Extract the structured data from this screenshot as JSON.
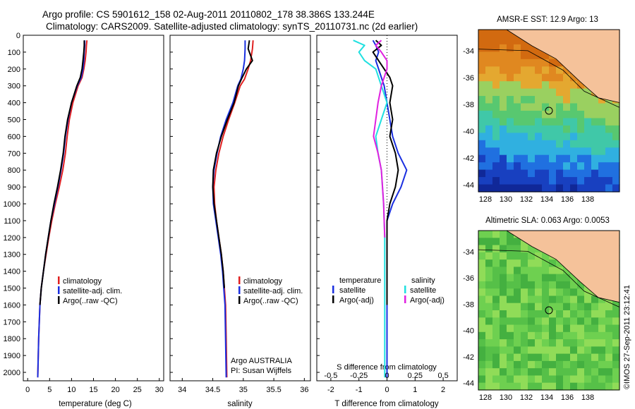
{
  "header": {
    "line1": "Argo profile: CS 5901612_158 02-Aug-2011 20110802_178 38.386S 133.244E",
    "line2": "Climatology: CARS2009. Satellite-adjusted climatology: synTS_20110731.nc (2d earlier)"
  },
  "panel_labels": {
    "temp_xlabel": "temperature (deg C)",
    "sal_xlabel": "salinity",
    "diff_xlabel_bottom": "T difference from climatology",
    "diff_xlabel_top": "S difference from climatology",
    "argo_credit": "Argo AUSTRALIA",
    "pi_credit": "PI: Susan Wijffels",
    "legend_temp_head": "temperature",
    "legend_sal_head": "salinity"
  },
  "legends": {
    "profile": [
      "climatology",
      "satellite-adj. clim.",
      "Argo(..raw -QC)"
    ],
    "diff_temp": [
      "satellite",
      "Argo(-adj)"
    ],
    "diff_sal": [
      "satellite",
      "Argo(-adj)"
    ]
  },
  "maps": {
    "sst_title": "AMSR-E SST: 12.9 Argo: 13",
    "sla_title": "Altimetric SLA: 0.063 Argo: 0.0053",
    "lat_ticks": [
      "-34",
      "-36",
      "-38",
      "-40",
      "-42",
      "-44"
    ],
    "lon_ticks": [
      "128",
      "130",
      "132",
      "134",
      "136",
      "138"
    ]
  },
  "watermark": "©IMOS 27-Sep-2011 23:12:41",
  "colors": {
    "climatology": "#e02020",
    "satellite": "#1a2fe0",
    "argo": "#000000",
    "sal_satellite": "#20e0e0",
    "sal_argo": "#e020e0",
    "land": "#f5c29a"
  },
  "chart_data": [
    {
      "type": "line",
      "title": "",
      "xlabel": "temperature (deg C)",
      "ylabel": "",
      "xlim": [
        -1,
        31
      ],
      "ylim": [
        2050,
        0
      ],
      "xticks": [
        0,
        5,
        10,
        15,
        20,
        25,
        30
      ],
      "yticks": [
        0,
        100,
        200,
        300,
        400,
        500,
        600,
        700,
        800,
        900,
        1000,
        1100,
        1200,
        1300,
        1400,
        1500,
        1600,
        1700,
        1800,
        1900,
        2000
      ],
      "series": [
        {
          "name": "climatology",
          "x": [
            13.5,
            13.4,
            13.3,
            13.1,
            12.8,
            12.4,
            11.5,
            10.3,
            9.5,
            9.0,
            8.6,
            8.0,
            7.2,
            6.3,
            5.5,
            4.8,
            4.2,
            3.6,
            3.1,
            2.8,
            2.5,
            2.3
          ],
          "y": [
            30,
            60,
            100,
            150,
            200,
            250,
            300,
            400,
            500,
            600,
            700,
            800,
            900,
            1000,
            1100,
            1200,
            1300,
            1400,
            1500,
            1600,
            1800,
            2030
          ]
        },
        {
          "name": "satellite-adj. clim.",
          "x": [
            13.0,
            13.0,
            12.9,
            12.8,
            12.6,
            12.2,
            11.3,
            10.0,
            9.2,
            8.6,
            8.2,
            7.6,
            6.9,
            6.1,
            5.3,
            4.7,
            4.1,
            3.6,
            3.1,
            2.8,
            2.5,
            2.3
          ],
          "y": [
            30,
            60,
            100,
            150,
            200,
            250,
            300,
            400,
            500,
            600,
            700,
            800,
            900,
            1000,
            1100,
            1200,
            1300,
            1400,
            1500,
            1600,
            1800,
            2030
          ]
        },
        {
          "name": "Argo(..raw -QC)",
          "x": [
            12.9,
            12.9,
            12.8,
            12.6,
            12.4,
            12.0,
            11.2,
            10.0,
            9.1,
            8.5,
            8.1,
            7.5,
            6.8,
            6.0,
            5.3,
            4.7,
            4.1,
            3.6,
            3.1,
            2.8
          ],
          "y": [
            30,
            60,
            100,
            150,
            200,
            250,
            300,
            400,
            500,
            600,
            700,
            800,
            900,
            1000,
            1100,
            1200,
            1300,
            1400,
            1500,
            1600
          ]
        }
      ]
    },
    {
      "type": "line",
      "title": "",
      "xlabel": "salinity",
      "ylabel": "",
      "xlim": [
        33.8,
        36.1
      ],
      "ylim": [
        2050,
        0
      ],
      "xticks": [
        34,
        34.5,
        35,
        35.5,
        36
      ],
      "series": [
        {
          "name": "climatology",
          "x": [
            35.16,
            35.15,
            35.12,
            35.08,
            35.02,
            34.95,
            34.86,
            34.76,
            34.67,
            34.6,
            34.55,
            34.52,
            34.53,
            34.56,
            34.6,
            34.64,
            34.67,
            34.69,
            34.71,
            34.72,
            34.73
          ],
          "y": [
            30,
            80,
            150,
            200,
            260,
            300,
            400,
            500,
            600,
            700,
            800,
            900,
            1000,
            1100,
            1200,
            1300,
            1400,
            1500,
            1600,
            1800,
            2030
          ]
        },
        {
          "name": "satellite-adj. clim.",
          "x": [
            35.03,
            35.03,
            35.02,
            35.0,
            34.96,
            34.91,
            34.83,
            34.72,
            34.63,
            34.57,
            34.52,
            34.5,
            34.51,
            34.55,
            34.59,
            34.63,
            34.66,
            34.68,
            34.7,
            34.71,
            34.72
          ],
          "y": [
            30,
            80,
            150,
            200,
            260,
            300,
            400,
            500,
            600,
            700,
            800,
            900,
            1000,
            1100,
            1200,
            1300,
            1400,
            1500,
            1600,
            1800,
            2030
          ]
        },
        {
          "name": "Argo(..raw -QC)",
          "x": [
            35.1,
            35.08,
            35.15,
            35.05,
            34.97,
            34.92,
            34.85,
            34.74,
            34.64,
            34.56,
            34.51,
            34.5,
            34.52,
            34.56,
            34.6,
            34.64,
            34.67,
            34.69
          ],
          "y": [
            30,
            80,
            150,
            200,
            260,
            300,
            400,
            500,
            600,
            700,
            800,
            900,
            1000,
            1100,
            1200,
            1300,
            1400,
            1500
          ]
        }
      ]
    },
    {
      "type": "line",
      "title": "",
      "xlabel": "T difference from climatology",
      "ylabel": "",
      "xlim": [
        -2.5,
        2.5
      ],
      "ylim": [
        2050,
        0
      ],
      "xticks": [
        -2,
        -1,
        0,
        1,
        2
      ],
      "x2label": "S difference from climatology",
      "x2ticks": [
        -0.5,
        -0.25,
        0,
        0.25,
        0.5
      ],
      "series": [
        {
          "name": "temperature satellite",
          "x": [
            -0.5,
            -0.4,
            -0.3,
            -0.4,
            -0.3,
            -0.2,
            -0.1,
            0.0,
            0.1,
            0.2,
            0.4,
            0.7,
            0.5,
            0.2,
            0.0,
            0.0,
            0.0,
            0.0,
            0.0,
            0.0
          ],
          "y": [
            30,
            60,
            100,
            150,
            200,
            250,
            300,
            400,
            500,
            600,
            700,
            800,
            900,
            1000,
            1100,
            1200,
            1300,
            1500,
            1800,
            2030
          ]
        },
        {
          "name": "temperature Argo(-adj)",
          "x": [
            -0.4,
            -0.2,
            -0.5,
            -0.3,
            -0.1,
            0.1,
            0.2,
            0.1,
            0.2,
            0.1,
            0.3,
            0.4,
            0.3,
            0.1,
            0.0,
            0.0,
            0.0,
            0.0
          ],
          "y": [
            30,
            60,
            100,
            150,
            200,
            250,
            300,
            400,
            500,
            600,
            700,
            800,
            900,
            1000,
            1100,
            1200,
            1400,
            1600
          ]
        },
        {
          "name": "salinity satellite",
          "x": [
            -0.3,
            -0.2,
            -0.25,
            -0.2,
            -0.1,
            -0.05,
            0.0,
            -0.05,
            -0.1,
            -0.08,
            -0.05,
            -0.04,
            -0.03,
            -0.02,
            -0.02,
            -0.02,
            -0.02
          ],
          "y": [
            30,
            60,
            100,
            150,
            200,
            300,
            400,
            500,
            600,
            700,
            800,
            900,
            1000,
            1200,
            1400,
            1800,
            2030
          ]
        },
        {
          "name": "salinity Argo(-adj)",
          "x": [
            -0.05,
            -0.1,
            -0.05,
            0.0,
            0.0,
            -0.05,
            -0.08,
            -0.1,
            -0.12,
            -0.08,
            -0.05,
            -0.04,
            -0.03,
            -0.02
          ],
          "y": [
            30,
            60,
            100,
            150,
            200,
            300,
            400,
            500,
            600,
            700,
            800,
            900,
            1000,
            1200
          ]
        }
      ]
    }
  ]
}
